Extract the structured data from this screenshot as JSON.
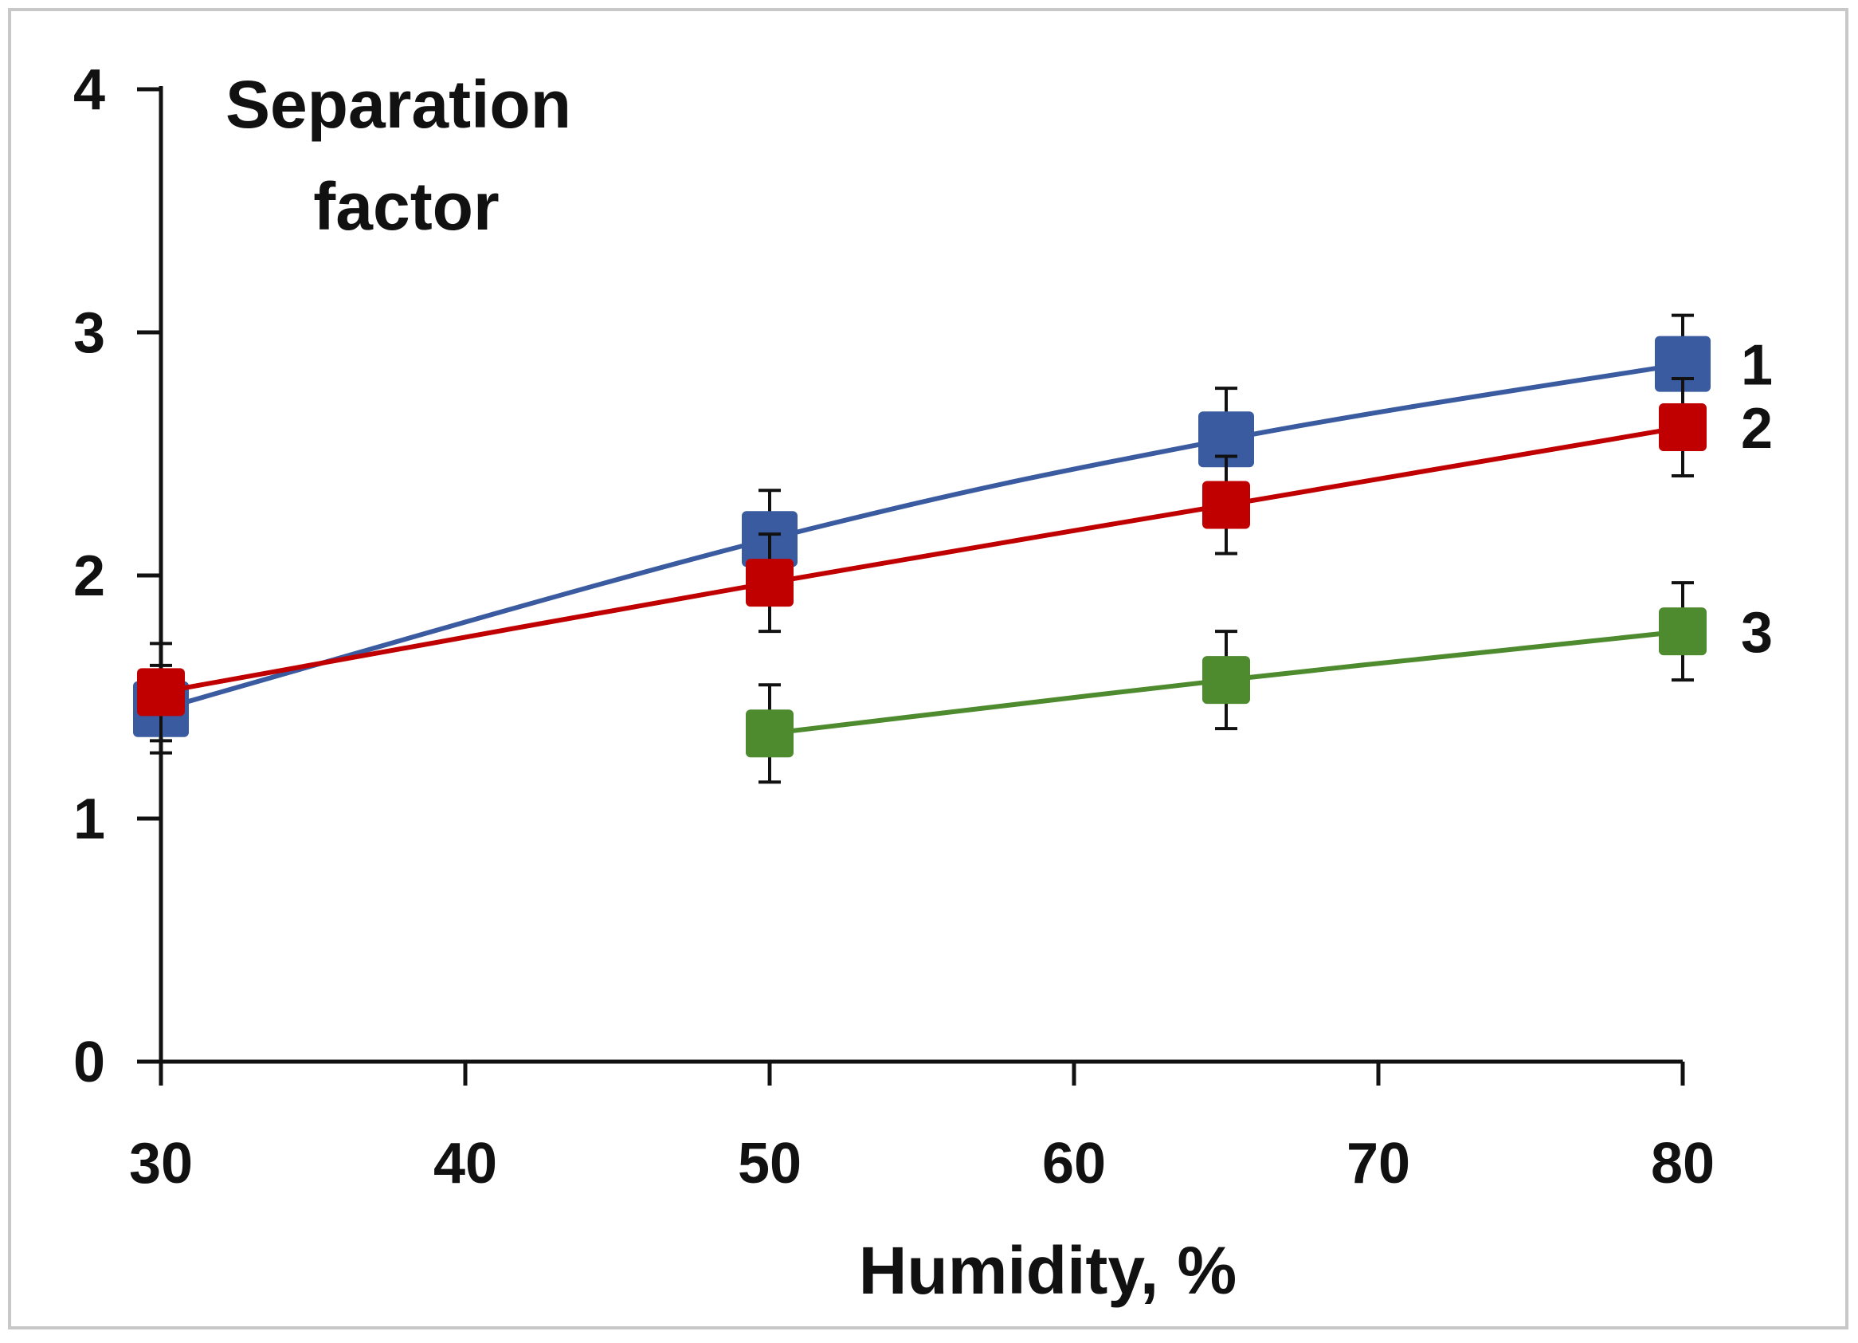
{
  "chart_data": {
    "type": "line",
    "title": "",
    "xlabel": "Humidity, %",
    "ylabel_lines": [
      "Separation",
      "factor"
    ],
    "xlim": [
      30,
      80
    ],
    "ylim": [
      0,
      4
    ],
    "xticks": [
      30,
      40,
      50,
      60,
      70,
      80
    ],
    "yticks": [
      0,
      1,
      2,
      3,
      4
    ],
    "grid": false,
    "legend": "inline-right",
    "series": [
      {
        "name": "1",
        "color": "#3A5BA0",
        "x": [
          30,
          50,
          65,
          80
        ],
        "y": [
          1.45,
          2.15,
          2.56,
          2.87
        ],
        "err": [
          0.18,
          0.2,
          0.21,
          0.2
        ]
      },
      {
        "name": "2",
        "color": "#C00000",
        "x": [
          30,
          50,
          65,
          80
        ],
        "y": [
          1.52,
          1.97,
          2.29,
          2.61
        ],
        "err": [
          0.2,
          0.2,
          0.2,
          0.2
        ]
      },
      {
        "name": "3",
        "color": "#4E8A2E",
        "x": [
          50,
          65,
          80
        ],
        "y": [
          1.35,
          1.57,
          1.77
        ],
        "err": [
          0.2,
          0.2,
          0.2
        ]
      }
    ]
  }
}
